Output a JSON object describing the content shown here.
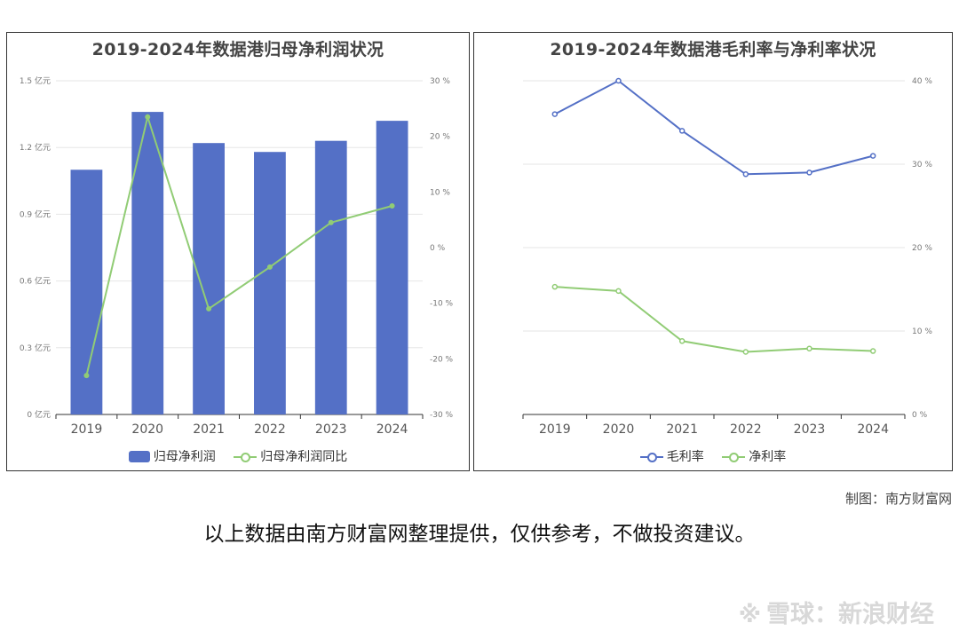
{
  "chart_data": [
    {
      "type": "bar",
      "title": "2019-2024年数据港归母净利润状况",
      "categories": [
        "2019",
        "2020",
        "2021",
        "2022",
        "2023",
        "2024"
      ],
      "series": [
        {
          "name": "归母净利润",
          "type": "bar",
          "axis": "left",
          "values": [
            1.1,
            1.36,
            1.22,
            1.18,
            1.23,
            1.32
          ],
          "color": "#5470c6"
        },
        {
          "name": "归母净利润同比",
          "type": "line",
          "axis": "right",
          "values": [
            -23.0,
            23.5,
            -11.0,
            -3.5,
            4.5,
            7.5
          ],
          "color": "#91cc75"
        }
      ],
      "y_left": {
        "ticks": [
          "0 亿元",
          "0.3 亿元",
          "0.6 亿元",
          "0.9 亿元",
          "1.2 亿元",
          "1.5 亿元"
        ],
        "min": 0,
        "max": 1.5
      },
      "y_right": {
        "ticks": [
          "-30 %",
          "-20 %",
          "-10 %",
          "0 %",
          "10 %",
          "20 %",
          "30 %"
        ],
        "min": -30,
        "max": 30
      },
      "legend": "bottom"
    },
    {
      "type": "line",
      "title": "2019-2024年数据港毛利率与净利率状况",
      "categories": [
        "2019",
        "2020",
        "2021",
        "2022",
        "2023",
        "2024"
      ],
      "series": [
        {
          "name": "毛利率",
          "values": [
            36.0,
            40.0,
            34.0,
            28.8,
            29.0,
            31.0
          ],
          "color": "#5470c6"
        },
        {
          "name": "净利率",
          "values": [
            15.3,
            14.8,
            8.8,
            7.5,
            7.9,
            7.6
          ],
          "color": "#91cc75"
        }
      ],
      "y_right": {
        "ticks": [
          "0 %",
          "10 %",
          "20 %",
          "30 %",
          "40 %"
        ],
        "min": 0,
        "max": 40
      },
      "legend": "bottom"
    }
  ],
  "source_text": "制图：南方财富网",
  "disclaimer_text": "以上数据由南方财富网整理提供，仅供参考，不做投资建议。",
  "footer": {
    "icon": "snowball-logo-icon",
    "text": "雪球：新浪财经"
  }
}
